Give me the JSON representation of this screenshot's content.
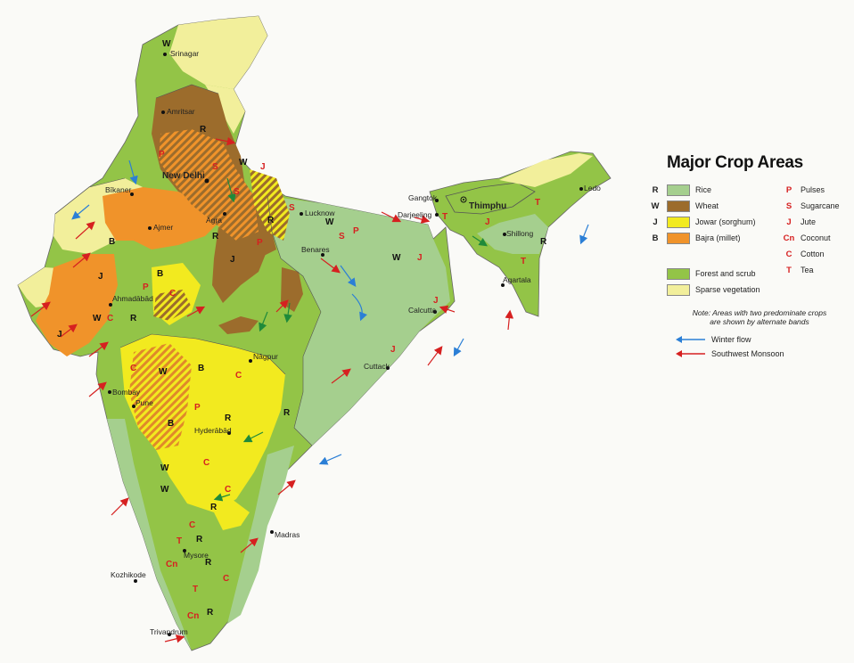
{
  "legend": {
    "title": "Major Crop Areas",
    "crops": [
      {
        "code": "R",
        "label": "Rice",
        "color": "#a5cf8e"
      },
      {
        "code": "W",
        "label": "Wheat",
        "color": "#9c6c2c"
      },
      {
        "code": "J",
        "label": "Jowar (sorghum)",
        "color": "#f2ea1f"
      },
      {
        "code": "B",
        "label": "Bajra (millet)",
        "color": "#f0932a"
      }
    ],
    "vegetation": [
      {
        "label": "Forest and scrub",
        "color": "#93c447"
      },
      {
        "label": "Sparse vegetation",
        "color": "#f2ef9b"
      }
    ],
    "symbols": [
      {
        "code": "P",
        "label": "Pulses"
      },
      {
        "code": "S",
        "label": "Sugarcane"
      },
      {
        "code": "J",
        "label": "Jute"
      },
      {
        "code": "Cn",
        "label": "Coconut"
      },
      {
        "code": "C",
        "label": "Cotton"
      },
      {
        "code": "T",
        "label": "Tea"
      }
    ],
    "note_line1": "Note: Areas with two predominate crops",
    "note_line2": "are shown by alternate bands",
    "flows": [
      {
        "label": "Winter flow",
        "color": "#2b7fd6"
      },
      {
        "label": "Southwest Monsoon",
        "color": "#d62020"
      }
    ]
  },
  "colors": {
    "symbol_red": "#d62020",
    "forest": "#93c447",
    "sparse": "#f2ef9b",
    "rice": "#a5cf8e",
    "wheat": "#9c6c2c",
    "jowar": "#f2ea1f",
    "bajra": "#f0932a"
  },
  "cities": {
    "srinagar": "Srinagar",
    "amritsar": "Amritsar",
    "new_delhi": "New Delhi",
    "bikaner": "Bīkaner",
    "agra": "Agra",
    "ajmer": "Ajmer",
    "lucknow": "Lucknow",
    "benares": "Benares",
    "ahmadabad": "Ahmadābād",
    "nagpur": "Nāgpur",
    "bombay": "Bombay",
    "pune": "Pune",
    "hyderabad": "Hyderābād",
    "madras": "Madras",
    "mysore": "Mysore",
    "kozhikode": "Kozhikode",
    "trivandrum": "Trivandrum",
    "calcutta": "Calcutta",
    "cuttack": "Cuttack",
    "gangtok": "Gangtok",
    "darjeeling": "Darjeeling",
    "thimphu": "Thimphu",
    "shillong": "Shillong",
    "agartala": "Agartala",
    "ledo": "Ledo"
  },
  "map_codes": {
    "rice": "R",
    "wheat": "W",
    "jowar": "J",
    "bajra": "B",
    "pulses": "P",
    "sugarcane": "S",
    "jute": "J",
    "cotton": "C",
    "coconut": "Cn",
    "tea": "T"
  }
}
